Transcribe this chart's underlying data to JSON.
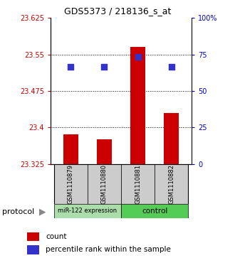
{
  "title": "GDS5373 / 218136_s_at",
  "samples": [
    "GSM1110879",
    "GSM1110880",
    "GSM1110881",
    "GSM1110882"
  ],
  "bar_values": [
    23.385,
    23.375,
    23.565,
    23.43
  ],
  "dot_values": [
    23.525,
    23.525,
    23.545,
    23.525
  ],
  "bar_bottom": 23.325,
  "ylim_left": [
    23.325,
    23.625
  ],
  "ylim_right": [
    0,
    100
  ],
  "yticks_left": [
    23.325,
    23.4,
    23.475,
    23.55,
    23.625
  ],
  "yticks_right": [
    0,
    25,
    50,
    75,
    100
  ],
  "ytick_labels_left": [
    "23.325",
    "23.4",
    "23.475",
    "23.55",
    "23.625"
  ],
  "ytick_labels_right": [
    "0",
    "25",
    "50",
    "75",
    "100%"
  ],
  "bar_color": "#cc0000",
  "dot_color": "#3333cc",
  "group1_color": "#aaddaa",
  "group2_color": "#55cc55",
  "sample_bg_color": "#cccccc",
  "bar_width": 0.45,
  "dot_size": 28,
  "grid_color": "#000000",
  "x_positions": [
    0,
    1,
    2,
    3
  ],
  "group1_label": "miR-122 expression",
  "group2_label": "control",
  "protocol_label": "protocol",
  "legend_count": "count",
  "legend_pct": "percentile rank within the sample"
}
